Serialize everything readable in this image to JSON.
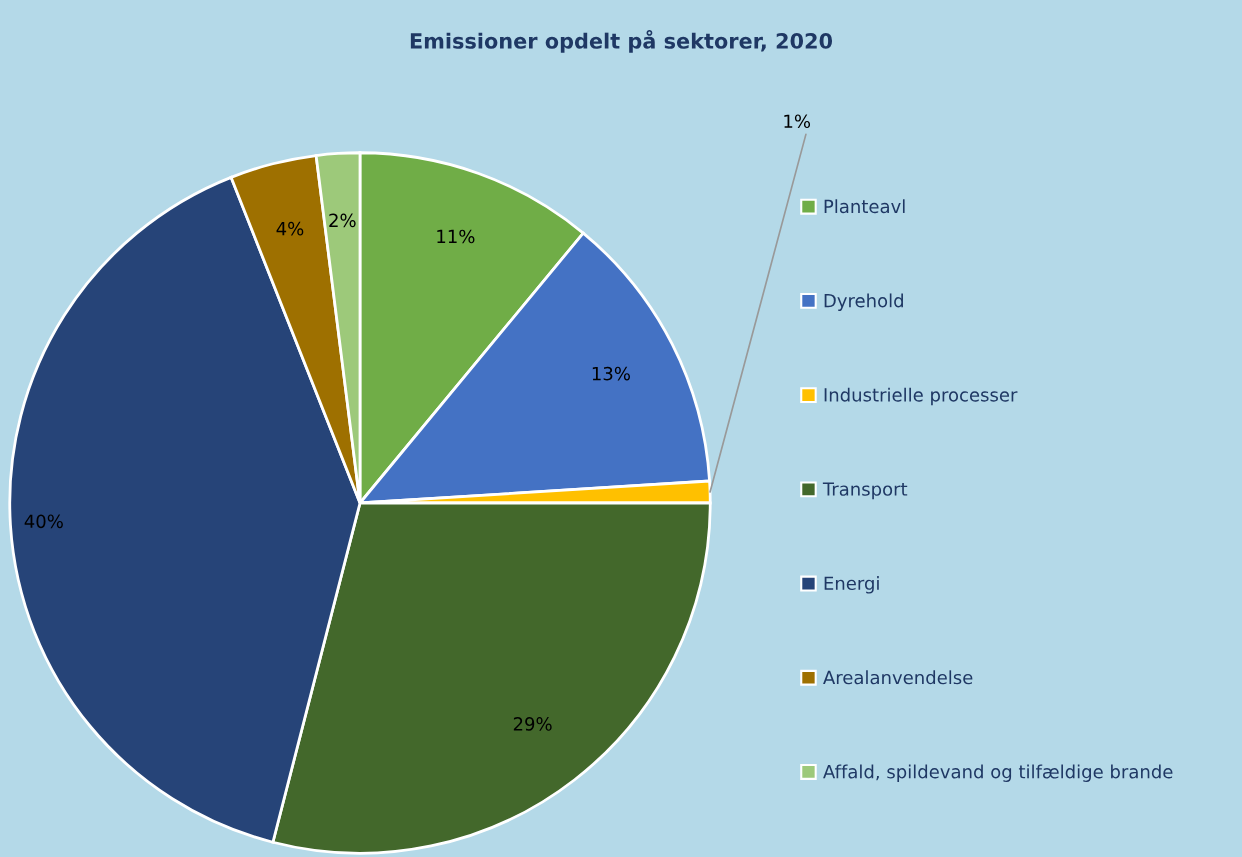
{
  "chart_data": {
    "type": "pie",
    "title": "Emissioner opdelt på sektorer, 2020",
    "categories": [
      "Planteavl",
      "Dyrehold",
      "Industrielle processer",
      "Transport",
      "Energi",
      "Arealanvendelse",
      "Affald, spildevand og tilfældige brande"
    ],
    "values": [
      11,
      13,
      1,
      29,
      40,
      4,
      2
    ],
    "value_labels": [
      "11%",
      "13%",
      "1%",
      "29%",
      "40%",
      "4%",
      "2%"
    ],
    "colors": [
      "#70ad47",
      "#4472c4",
      "#ffc000",
      "#43682b",
      "#264478",
      "#9e7000",
      "#9dc97a"
    ],
    "legend": "right"
  }
}
